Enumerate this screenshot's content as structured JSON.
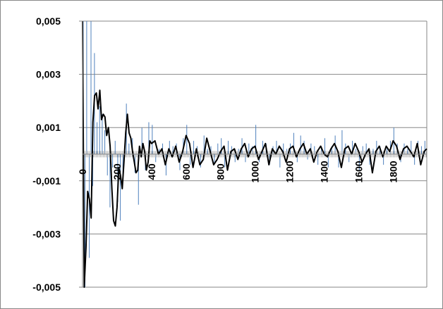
{
  "chart_data": {
    "type": "line",
    "title": "",
    "xlabel": "",
    "ylabel": "",
    "xlim": [
      0,
      1995
    ],
    "ylim": [
      -0.005,
      0.005
    ],
    "y_ticks": [
      {
        "value": 0.005,
        "label": "0,005"
      },
      {
        "value": 0.003,
        "label": "0,003"
      },
      {
        "value": 0.001,
        "label": "0,001"
      },
      {
        "value": -0.001,
        "label": "-0,001"
      },
      {
        "value": -0.003,
        "label": "-0,003"
      },
      {
        "value": -0.005,
        "label": "-0,005"
      }
    ],
    "x_ticks": [
      {
        "value": 0,
        "label": "0"
      },
      {
        "value": 200,
        "label": "200"
      },
      {
        "value": 400,
        "label": "400"
      },
      {
        "value": 600,
        "label": "600"
      },
      {
        "value": 800,
        "label": "800"
      },
      {
        "value": 1000,
        "label": "1000"
      },
      {
        "value": 1200,
        "label": "1200"
      },
      {
        "value": 1400,
        "label": "1400"
      },
      {
        "value": 1600,
        "label": "1600"
      },
      {
        "value": 1800,
        "label": "1800"
      }
    ],
    "grid": true,
    "series": [
      {
        "style": "bars",
        "color": "#4f81bd",
        "x": [
          0,
          10,
          20,
          35,
          45,
          55,
          65,
          80,
          95,
          110,
          125,
          140,
          155,
          170,
          185,
          200,
          215,
          230,
          250,
          265,
          285,
          300,
          320,
          340,
          360,
          380,
          400,
          420,
          440,
          460,
          480,
          500,
          520,
          540,
          560,
          580,
          600,
          620,
          640,
          660,
          680,
          700,
          720,
          740,
          760,
          780,
          800,
          820,
          840,
          860,
          880,
          900,
          920,
          940,
          960,
          980,
          1000,
          1020,
          1040,
          1060,
          1080,
          1100,
          1120,
          1140,
          1160,
          1180,
          1200,
          1220,
          1240,
          1260,
          1280,
          1300,
          1320,
          1340,
          1360,
          1380,
          1400,
          1420,
          1440,
          1460,
          1480,
          1500,
          1520,
          1540,
          1560,
          1580,
          1600,
          1620,
          1640,
          1660,
          1680,
          1700,
          1720,
          1740,
          1760,
          1780,
          1800,
          1820,
          1840,
          1860,
          1880,
          1900,
          1920,
          1940,
          1960,
          1980
        ],
        "y": [
          0.005,
          -0.005,
          0.005,
          -0.0039,
          0.005,
          -0.0012,
          0.0038,
          0.0012,
          0.0018,
          0.0015,
          0.0009,
          -0.0008,
          -0.002,
          -0.0005,
          0.0005,
          -0.0018,
          -0.0025,
          -0.0008,
          0.0019,
          0.0004,
          0.0006,
          -0.0007,
          -0.0019,
          0.001,
          -0.0006,
          0.0012,
          0.0011,
          -0.0003,
          0.0002,
          0.0004,
          -0.0008,
          0.0005,
          0.0003,
          0.0004,
          -0.0006,
          0.0006,
          0.0011,
          -0.0004,
          0.0005,
          0.0003,
          -0.0005,
          0.0007,
          0.0002,
          0.0003,
          -0.0004,
          0.0004,
          0.0006,
          -0.0005,
          0.0005,
          0.0003,
          -0.0003,
          0.0002,
          0.0006,
          -0.0003,
          0.0004,
          0.0003,
          0.0011,
          -0.0003,
          0.0005,
          0.0004,
          -0.0004,
          0.0003,
          0.0005,
          -0.0005,
          0.0004,
          0.0002,
          0.0004,
          0.0008,
          -0.0003,
          0.0007,
          0.0005,
          -0.0002,
          0.0004,
          0.0003,
          -0.0004,
          0.0003,
          0.0006,
          -0.0005,
          0.0003,
          0.0007,
          -0.0005,
          0.0009,
          0.0004,
          -0.0003,
          0.0005,
          0.0002,
          -0.0006,
          0.0003,
          0.0004,
          -0.0004,
          0.0002,
          0.0005,
          0.0003,
          -0.0004,
          0.0002,
          0.0005,
          0.001,
          0.0004,
          -0.0003,
          0.0004,
          0.0002,
          0.0005,
          -0.0004,
          0.0005,
          0.0003,
          0.0005
        ]
      },
      {
        "style": "line",
        "color": "#000000",
        "x": [
          0,
          10,
          20,
          30,
          40,
          50,
          60,
          70,
          80,
          90,
          100,
          110,
          120,
          130,
          140,
          150,
          160,
          170,
          180,
          190,
          200,
          210,
          220,
          230,
          240,
          250,
          260,
          270,
          280,
          290,
          300,
          310,
          320,
          330,
          340,
          350,
          360,
          370,
          380,
          390,
          400,
          420,
          440,
          460,
          480,
          500,
          520,
          540,
          560,
          580,
          600,
          620,
          640,
          660,
          680,
          700,
          720,
          740,
          760,
          780,
          800,
          820,
          840,
          860,
          880,
          900,
          920,
          940,
          960,
          980,
          1000,
          1020,
          1040,
          1060,
          1080,
          1100,
          1120,
          1140,
          1160,
          1180,
          1200,
          1220,
          1240,
          1260,
          1280,
          1300,
          1320,
          1340,
          1360,
          1380,
          1400,
          1420,
          1440,
          1460,
          1480,
          1500,
          1520,
          1540,
          1560,
          1580,
          1600,
          1620,
          1640,
          1660,
          1680,
          1700,
          1720,
          1740,
          1760,
          1780,
          1800,
          1820,
          1840,
          1860,
          1880,
          1900,
          1920,
          1940,
          1960,
          1980,
          1995
        ],
        "y": [
          0.005,
          -0.005,
          -0.0035,
          -0.0014,
          -0.0017,
          -0.0024,
          0.0012,
          0.0022,
          0.0023,
          0.0017,
          0.0024,
          0.0013,
          0.0015,
          0.0014,
          0.0007,
          0.001,
          0.0003,
          -0.0013,
          -0.0025,
          -0.0027,
          -0.002,
          -0.0005,
          -0.0008,
          -0.0013,
          -0.0003,
          0.0008,
          0.0015,
          0.0008,
          0.0006,
          0.0001,
          -0.0003,
          -0.0007,
          -0.0006,
          0.0003,
          -0.0001,
          0.0004,
          0.0001,
          -0.0006,
          -0.0003,
          0.0005,
          0.0004,
          0.0005,
          0.0,
          0.0002,
          -0.0004,
          0.0002,
          -0.0001,
          0.0003,
          -0.0003,
          0.0001,
          0.0007,
          0.0004,
          -0.0005,
          0.0002,
          -0.0004,
          -0.0002,
          0.0006,
          0.0001,
          -0.0004,
          -0.0002,
          0.0001,
          0.0003,
          -0.0006,
          0.0001,
          0.0002,
          -0.0002,
          0.0002,
          0.0004,
          -0.0001,
          0.0002,
          0.0003,
          -0.0002,
          0.0001,
          0.0004,
          -0.0004,
          0.0002,
          0.0,
          0.0003,
          0.0001,
          -0.0003,
          0.0002,
          0.0003,
          -0.0001,
          0.0002,
          0.0004,
          0.0,
          0.0002,
          -0.0003,
          0.0001,
          0.0003,
          0.0,
          -0.0001,
          0.0002,
          0.0004,
          0.0001,
          -0.0005,
          0.0002,
          0.0003,
          0.0,
          0.0004,
          0.0001,
          -0.0003,
          0.0,
          0.0002,
          -0.0007,
          0.0001,
          0.0003,
          -0.0001,
          0.0003,
          0.0001,
          0.0005,
          0.0003,
          -0.0002,
          0.0002,
          0.0003,
          0.0001,
          -0.0001,
          0.0004,
          -0.0004,
          0.0001,
          0.0002
        ]
      }
    ]
  }
}
